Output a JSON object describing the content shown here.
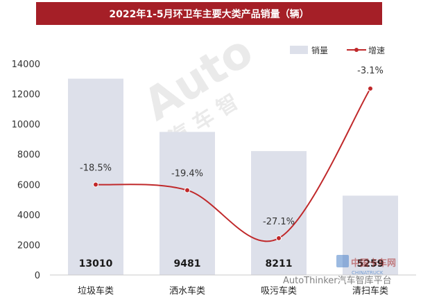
{
  "chart_data": {
    "type": "bar",
    "title": "2022年1-5月环卫车主要大类产品销量（辆）",
    "categories": [
      "垃圾车类",
      "洒水车类",
      "吸污车类",
      "清扫车类"
    ],
    "series": [
      {
        "name": "销量",
        "type": "bar",
        "values": [
          13010,
          9481,
          8211,
          5259
        ],
        "color": "#dde0ea"
      },
      {
        "name": "增速",
        "type": "line",
        "axis": "hidden",
        "values": [
          -18.5,
          -19.4,
          -27.1,
          -3.1
        ],
        "labels": [
          "-18.5%",
          "-19.4%",
          "-27.1%",
          "-3.1%"
        ],
        "color": "#c0282a"
      }
    ],
    "ylim": [
      0,
      14000
    ],
    "yticks": [
      0,
      2000,
      4000,
      6000,
      8000,
      10000,
      12000,
      14000
    ],
    "legend": "top-right",
    "grid": false
  },
  "watermark": {
    "main": "Auto",
    "chars": "汽 车 智",
    "bottom": "AutoThinker汽车智库平台",
    "logo": "中国卡车网",
    "logo_sub": "CHINATRUCK"
  }
}
